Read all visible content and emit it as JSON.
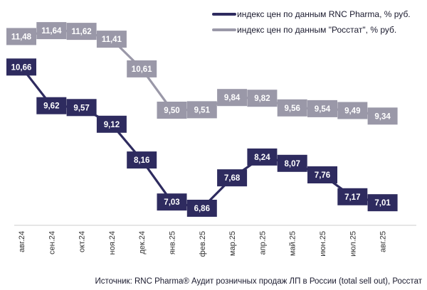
{
  "chart_data": {
    "type": "line",
    "categories": [
      "авг.24",
      "сен.24",
      "окт.24",
      "ноя.24",
      "дек.24",
      "янв.25",
      "фев.25",
      "мар.25",
      "апр.25",
      "май.25",
      "июн.25",
      "июл.25",
      "авг.25"
    ],
    "series": [
      {
        "name": "индекс цен по данным RNC Pharma, % руб.",
        "color": "#2e2b5f",
        "values": [
          10.66,
          9.62,
          9.57,
          9.12,
          8.16,
          7.03,
          6.86,
          7.68,
          8.24,
          8.07,
          7.76,
          7.17,
          7.01
        ],
        "labels": [
          "10,66",
          "9,62",
          "9,57",
          "9,12",
          "8,16",
          "7,03",
          "6,86",
          "7,68",
          "8,24",
          "8,07",
          "7,76",
          "7,17",
          "7,01"
        ]
      },
      {
        "name": "индекс цен по данным \"Росстат\", % руб.",
        "color": "#9a98a8",
        "values": [
          11.48,
          11.64,
          11.62,
          11.41,
          10.61,
          9.5,
          9.51,
          9.84,
          9.82,
          9.56,
          9.54,
          9.49,
          9.34
        ],
        "labels": [
          "11,48",
          "11,64",
          "11,62",
          "11,41",
          "10,61",
          "9,50",
          "9,51",
          "9,84",
          "9,82",
          "9,56",
          "9,54",
          "9,49",
          "9,34"
        ]
      }
    ],
    "legend_position": "top-right",
    "grid": false
  },
  "source": "Источник: RNC Pharma® Аудит розничных продаж ЛП в России (total sell out), Росстат"
}
